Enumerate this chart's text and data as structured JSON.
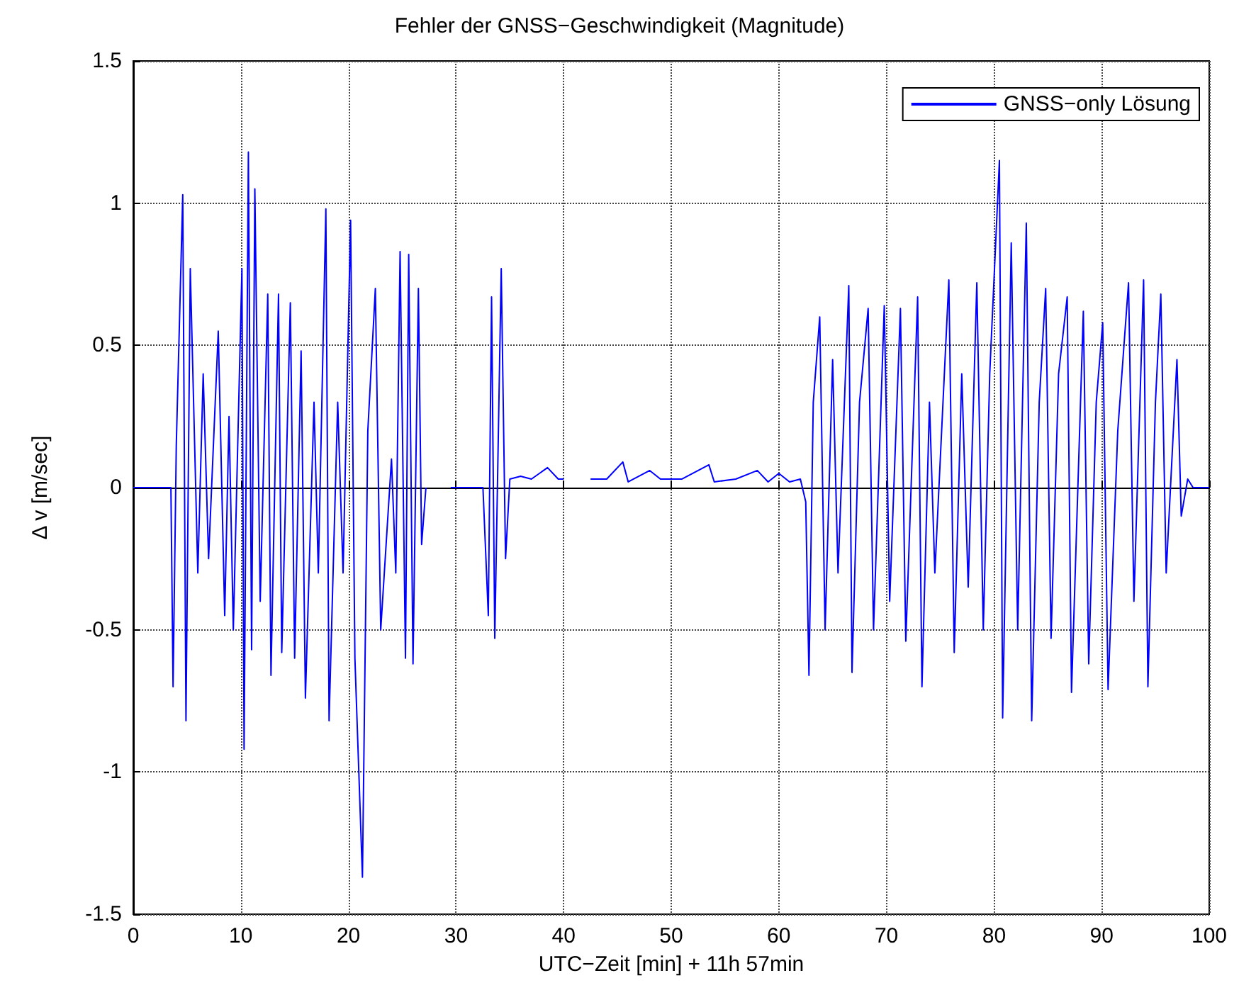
{
  "chart_data": {
    "type": "line",
    "title": "Fehler der GNSS−Geschwindigkeit (Magnitude)",
    "xlabel": "UTC−Zeit [min] + 11h 57min",
    "ylabel": "Δ v [m/sec]",
    "xlim": [
      0,
      100
    ],
    "ylim": [
      -1.5,
      1.5
    ],
    "xticks": [
      0,
      10,
      20,
      30,
      40,
      50,
      60,
      70,
      80,
      90,
      100
    ],
    "yticks": [
      -1.5,
      -1,
      -0.5,
      0,
      0.5,
      1,
      1.5
    ],
    "grid": true,
    "legend": "top right",
    "line_style": "solid",
    "marker": "none",
    "series": [
      {
        "name": "GNSS−only Lösung",
        "color": "#0000ff",
        "x": [
          0,
          3.5,
          3.7,
          4.0,
          4.6,
          4.9,
          5.3,
          6,
          6.5,
          7,
          7.9,
          8.5,
          8.9,
          9.3,
          10.1,
          10.3,
          10.7,
          11,
          11.3,
          11.8,
          12.5,
          12.8,
          13.5,
          13.8,
          14.6,
          15,
          15.6,
          16,
          16.8,
          17.2,
          17.9,
          18.2,
          19,
          19.5,
          20.2,
          20.6,
          21.3,
          21.8,
          22.5,
          23,
          24,
          24.4,
          24.8,
          25.3,
          25.6,
          26,
          26.5,
          26.8,
          27.2,
          27.5,
          29.5,
          32.5,
          33,
          33.3,
          33.6,
          34.2,
          34.6,
          35,
          36,
          37,
          38.5,
          39.5,
          40,
          41,
          42.5,
          44,
          45.5,
          46,
          48,
          49,
          51,
          53.5,
          54,
          56,
          58,
          59,
          60,
          61,
          62,
          62.5,
          62.8,
          63.2,
          63.8,
          64.3,
          65,
          65.5,
          66.5,
          66.8,
          67.5,
          68.3,
          68.8,
          69.8,
          70.3,
          71.3,
          71.8,
          72.9,
          73.3,
          74,
          74.5,
          75.8,
          76.3,
          77,
          77.6,
          78.4,
          79,
          79.6,
          80.5,
          80.8,
          81.6,
          82.2,
          83,
          83.5,
          84.2,
          84.8,
          85.3,
          86,
          86.8,
          87.2,
          88.3,
          88.8,
          89.5,
          90.1,
          90.6,
          91.5,
          92.5,
          93,
          93.9,
          94.3,
          95,
          95.5,
          96,
          97,
          97.4,
          98,
          98.5,
          100
        ],
        "values": [
          0,
          0,
          -0.7,
          0.15,
          1.03,
          -0.82,
          0.77,
          -0.3,
          0.4,
          -0.25,
          0.55,
          -0.45,
          0.25,
          -0.5,
          0.77,
          -0.92,
          1.18,
          -0.57,
          1.05,
          -0.4,
          0.68,
          -0.66,
          0.68,
          -0.58,
          0.65,
          -0.6,
          0.48,
          -0.74,
          0.3,
          -0.3,
          0.98,
          -0.82,
          0.3,
          -0.3,
          0.94,
          -0.6,
          -1.37,
          0.2,
          0.7,
          -0.5,
          0.1,
          -0.3,
          0.83,
          -0.6,
          0.82,
          -0.62,
          0.7,
          -0.2,
          0,
          null,
          0,
          0,
          -0.45,
          0.67,
          -0.53,
          0.77,
          -0.25,
          0.03,
          0.04,
          0.03,
          0.07,
          0.03,
          0.03,
          null,
          0.03,
          0.03,
          0.09,
          0.02,
          0.06,
          0.03,
          0.03,
          0.08,
          0.02,
          0.03,
          0.06,
          0.02,
          0.05,
          0.02,
          0.03,
          -0.05,
          -0.66,
          0.3,
          0.6,
          -0.5,
          0.45,
          -0.3,
          0.71,
          -0.65,
          0.3,
          0.63,
          -0.5,
          0.64,
          -0.4,
          0.63,
          -0.54,
          0.67,
          -0.7,
          0.3,
          -0.3,
          0.73,
          -0.58,
          0.4,
          -0.35,
          0.72,
          -0.5,
          0.4,
          1.15,
          -0.81,
          0.86,
          -0.5,
          0.93,
          -0.82,
          0.3,
          0.7,
          -0.53,
          0.4,
          0.67,
          -0.72,
          0.62,
          -0.62,
          0.3,
          0.58,
          -0.71,
          0.2,
          0.72,
          -0.4,
          0.73,
          -0.7,
          0.3,
          0.68,
          -0.3,
          0.45,
          -0.1,
          0.03,
          0,
          0
        ]
      }
    ]
  }
}
